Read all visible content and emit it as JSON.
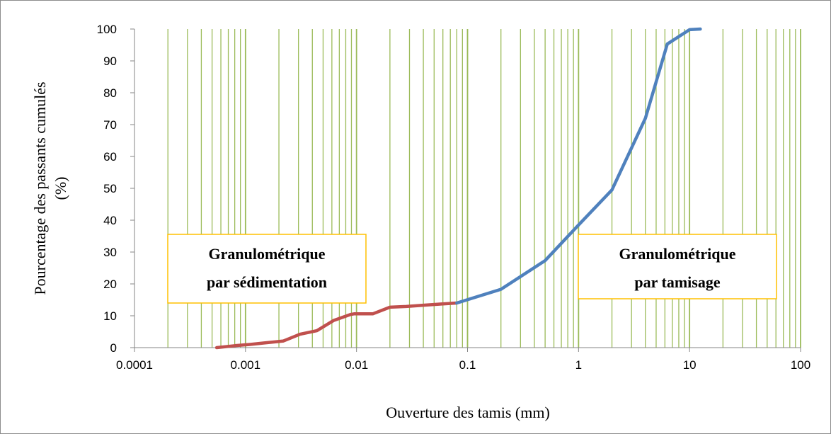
{
  "chart_data": {
    "type": "line",
    "title": "",
    "xlabel": "Ouverture des tamis (mm)",
    "ylabel_lines": [
      "Pourcentage des passants cumulés",
      "(%)"
    ],
    "x_scale": "log",
    "xlim": [
      0.0001,
      100
    ],
    "ylim": [
      0,
      100
    ],
    "x_tick_labels": [
      "0.0001",
      "0.001",
      "0.01",
      "0.1",
      "1",
      "10",
      "100"
    ],
    "y_tick_labels": [
      "0",
      "10",
      "20",
      "30",
      "40",
      "50",
      "60",
      "70",
      "80",
      "90",
      "100"
    ],
    "grid": "vertical log minor gridlines",
    "grid_color": "#9bbb59",
    "series": [
      {
        "color": "#c0504d",
        "x": [
          0.00055,
          0.0008,
          0.0011,
          0.0015,
          0.0022,
          0.0031,
          0.0044,
          0.0062,
          0.0088,
          0.0095,
          0.014,
          0.02,
          0.028,
          0.04,
          0.058,
          0.08
        ],
        "y": [
          0,
          0.6,
          1.0,
          1.5,
          2.1,
          4.2,
          5.3,
          8.5,
          10.4,
          10.6,
          10.6,
          12.7,
          12.9,
          13.3,
          13.7,
          14.0
        ]
      },
      {
        "color": "#4f81bd",
        "x": [
          0.08,
          0.2,
          0.5,
          1,
          2,
          4,
          6.3,
          10,
          12.5
        ],
        "y": [
          14.0,
          18.3,
          27.3,
          38.5,
          49.5,
          72.0,
          95.3,
          99.8,
          100
        ]
      }
    ],
    "annotations": [
      {
        "lines": [
          "Granulométrique",
          "par sédimentation"
        ]
      },
      {
        "lines": [
          "Granulométrique",
          "par tamisage"
        ]
      }
    ],
    "annotation_border_color": "#ffc000"
  }
}
